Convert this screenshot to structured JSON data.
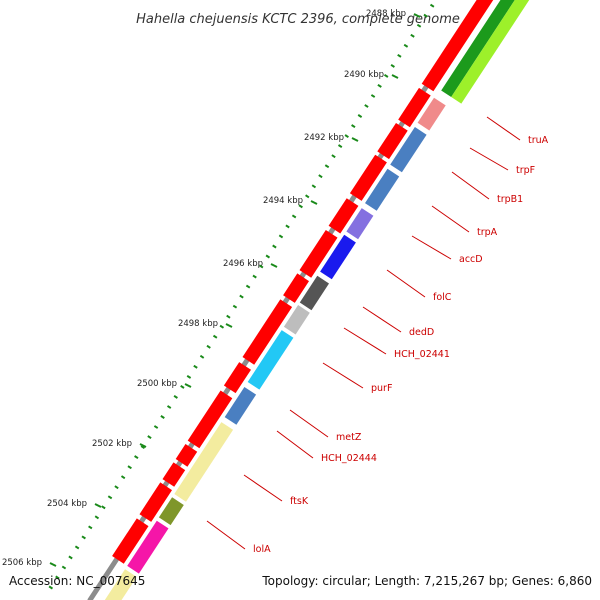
{
  "title": "Hahella chejuensis KCTC 2396, complete genome",
  "accession": "Accession: NC_007645",
  "summary": "Topology: circular; Length: 7,215,267 bp; Genes: 6,860",
  "ruler_labels": [
    "2488 kbp",
    "2490 kbp",
    "2492 kbp",
    "2494 kbp",
    "2496 kbp",
    "2498 kbp",
    "2500 kbp",
    "2502 kbp",
    "2504 kbp",
    "2506 kbp"
  ],
  "gene_labels": [
    "truA",
    "trpF",
    "trpB1",
    "trpA",
    "accD",
    "folC",
    "dedD",
    "HCH_02441",
    "purF",
    "metZ",
    "HCH_02444",
    "ftsK",
    "lolA"
  ],
  "colors": {
    "feature": "#ff0000",
    "backbone": "#8c8c8c",
    "ticks": "#1a8a1a",
    "label_line": "#cc0000",
    "label_text": "#cc0000",
    "genes": [
      "#f08a8a",
      "#4a7fc1",
      "#4a7fc1",
      "#8470e0",
      "#1a1aee",
      "#555555",
      "#bdbdbd",
      "#22c8f5",
      "#4a7fc1",
      "#f3ec9f",
      "#7f962a",
      "#f516a8",
      "#f3ec9f"
    ],
    "top_genes": [
      "#1c9a1c",
      "#9df02a"
    ]
  }
}
